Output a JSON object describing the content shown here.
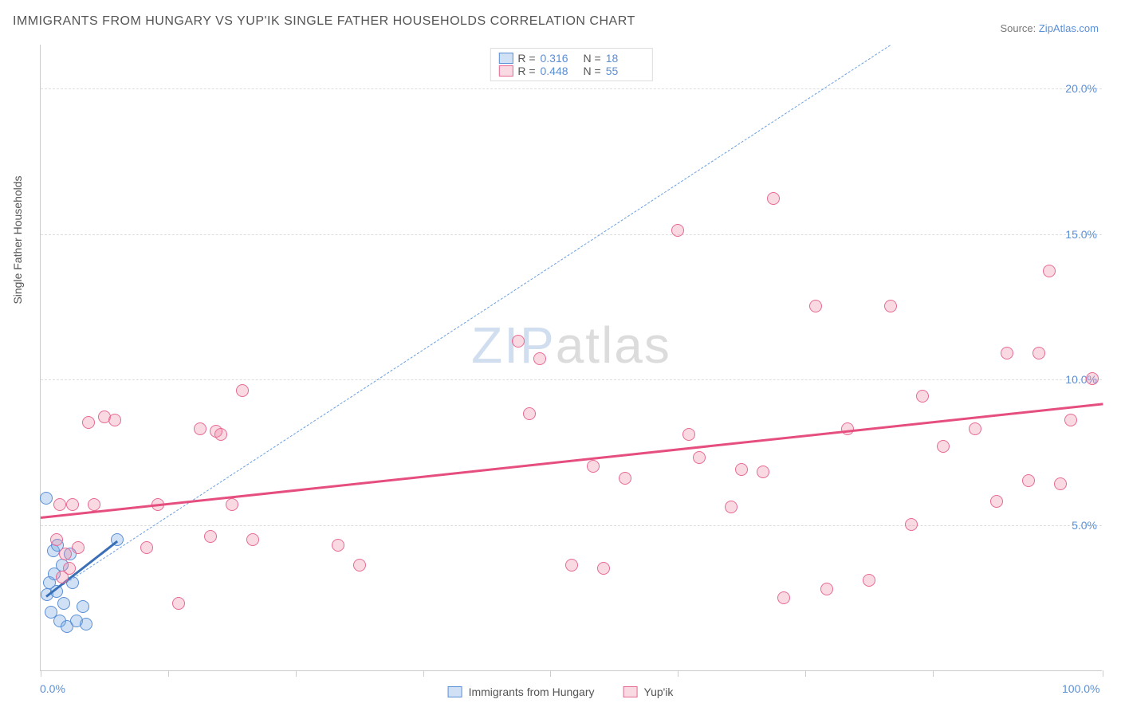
{
  "title": "IMMIGRANTS FROM HUNGARY VS YUP'IK SINGLE FATHER HOUSEHOLDS CORRELATION CHART",
  "source_prefix": "Source: ",
  "source_link": "ZipAtlas.com",
  "watermark_zip": "ZIP",
  "watermark_rest": "atlas",
  "chart": {
    "type": "scatter",
    "background_color": "#ffffff",
    "grid_color": "#dddddd",
    "axis_color": "#cccccc",
    "xlim": [
      0,
      100
    ],
    "ylim": [
      0,
      21.5
    ],
    "x_tick_positions": [
      0,
      12,
      24,
      36,
      48,
      60,
      72,
      84,
      100
    ],
    "y_gridlines": [
      5,
      10,
      15,
      20
    ],
    "y_tick_labels": [
      "5.0%",
      "10.0%",
      "15.0%",
      "20.0%"
    ],
    "x_axis_labels": {
      "left": "0.0%",
      "right": "100.0%"
    },
    "y_axis_title": "Single Father Households",
    "y_tick_color": "#5b8fd6",
    "x_tick_color": "#5b8fd6",
    "marker_size": 16,
    "marker_border_width": 1.5,
    "series": [
      {
        "name": "Immigrants from Hungary",
        "fill": "rgba(120,170,225,0.35)",
        "stroke": "#5b8fd6",
        "r": "0.316",
        "n": "18",
        "trend": {
          "x1": 0.5,
          "y1": 2.6,
          "x2": 7.2,
          "y2": 4.5,
          "color": "#3a6fb7",
          "width": 3,
          "dash": false
        },
        "ref_dashed": {
          "x1": 0.5,
          "y1": 2.6,
          "x2": 80,
          "y2": 21.5,
          "color": "#6a9fe0",
          "width": 1.2,
          "dash": true
        },
        "points": [
          [
            0.5,
            5.9
          ],
          [
            0.6,
            2.6
          ],
          [
            0.8,
            3.0
          ],
          [
            1.0,
            2.0
          ],
          [
            1.2,
            4.1
          ],
          [
            1.3,
            3.3
          ],
          [
            1.5,
            2.7
          ],
          [
            1.6,
            4.3
          ],
          [
            1.8,
            1.7
          ],
          [
            2.0,
            3.6
          ],
          [
            2.2,
            2.3
          ],
          [
            2.5,
            1.5
          ],
          [
            2.8,
            4.0
          ],
          [
            3.0,
            3.0
          ],
          [
            3.4,
            1.7
          ],
          [
            4.0,
            2.2
          ],
          [
            4.3,
            1.6
          ],
          [
            7.2,
            4.5
          ]
        ]
      },
      {
        "name": "Yup'ik",
        "fill": "rgba(235,130,160,0.30)",
        "stroke": "#e76a94",
        "r": "0.448",
        "n": "55",
        "trend": {
          "x1": 0,
          "y1": 5.3,
          "x2": 100,
          "y2": 9.2,
          "color": "#e54e7f",
          "width": 3,
          "dash": false
        },
        "points": [
          [
            1.5,
            4.5
          ],
          [
            1.8,
            5.7
          ],
          [
            2.0,
            3.2
          ],
          [
            2.3,
            4.0
          ],
          [
            2.7,
            3.5
          ],
          [
            3.0,
            5.7
          ],
          [
            3.5,
            4.2
          ],
          [
            4.5,
            8.5
          ],
          [
            5.0,
            5.7
          ],
          [
            6.0,
            8.7
          ],
          [
            7.0,
            8.6
          ],
          [
            10.0,
            4.2
          ],
          [
            11.0,
            5.7
          ],
          [
            13.0,
            2.3
          ],
          [
            15.0,
            8.3
          ],
          [
            16.0,
            4.6
          ],
          [
            16.5,
            8.2
          ],
          [
            17.0,
            8.1
          ],
          [
            18.0,
            5.7
          ],
          [
            19.0,
            9.6
          ],
          [
            20.0,
            4.5
          ],
          [
            28.0,
            4.3
          ],
          [
            30.0,
            3.6
          ],
          [
            45.0,
            11.3
          ],
          [
            46.0,
            8.8
          ],
          [
            47.0,
            10.7
          ],
          [
            50.0,
            3.6
          ],
          [
            52.0,
            7.0
          ],
          [
            53.0,
            3.5
          ],
          [
            55.0,
            6.6
          ],
          [
            60.0,
            15.1
          ],
          [
            61.0,
            8.1
          ],
          [
            62.0,
            7.3
          ],
          [
            65.0,
            5.6
          ],
          [
            66.0,
            6.9
          ],
          [
            68.0,
            6.8
          ],
          [
            69.0,
            16.2
          ],
          [
            70.0,
            2.5
          ],
          [
            73.0,
            12.5
          ],
          [
            74.0,
            2.8
          ],
          [
            76.0,
            8.3
          ],
          [
            78.0,
            3.1
          ],
          [
            80.0,
            12.5
          ],
          [
            82.0,
            5.0
          ],
          [
            83.0,
            9.4
          ],
          [
            85.0,
            7.7
          ],
          [
            88.0,
            8.3
          ],
          [
            90.0,
            5.8
          ],
          [
            91.0,
            10.9
          ],
          [
            93.0,
            6.5
          ],
          [
            94.0,
            10.9
          ],
          [
            95.0,
            13.7
          ],
          [
            96.0,
            6.4
          ],
          [
            97.0,
            8.6
          ],
          [
            99.0,
            10.0
          ]
        ]
      }
    ],
    "legend_bottom": [
      {
        "label": "Immigrants from Hungary",
        "key": 0
      },
      {
        "label": "Yup'ik",
        "key": 1
      }
    ]
  }
}
